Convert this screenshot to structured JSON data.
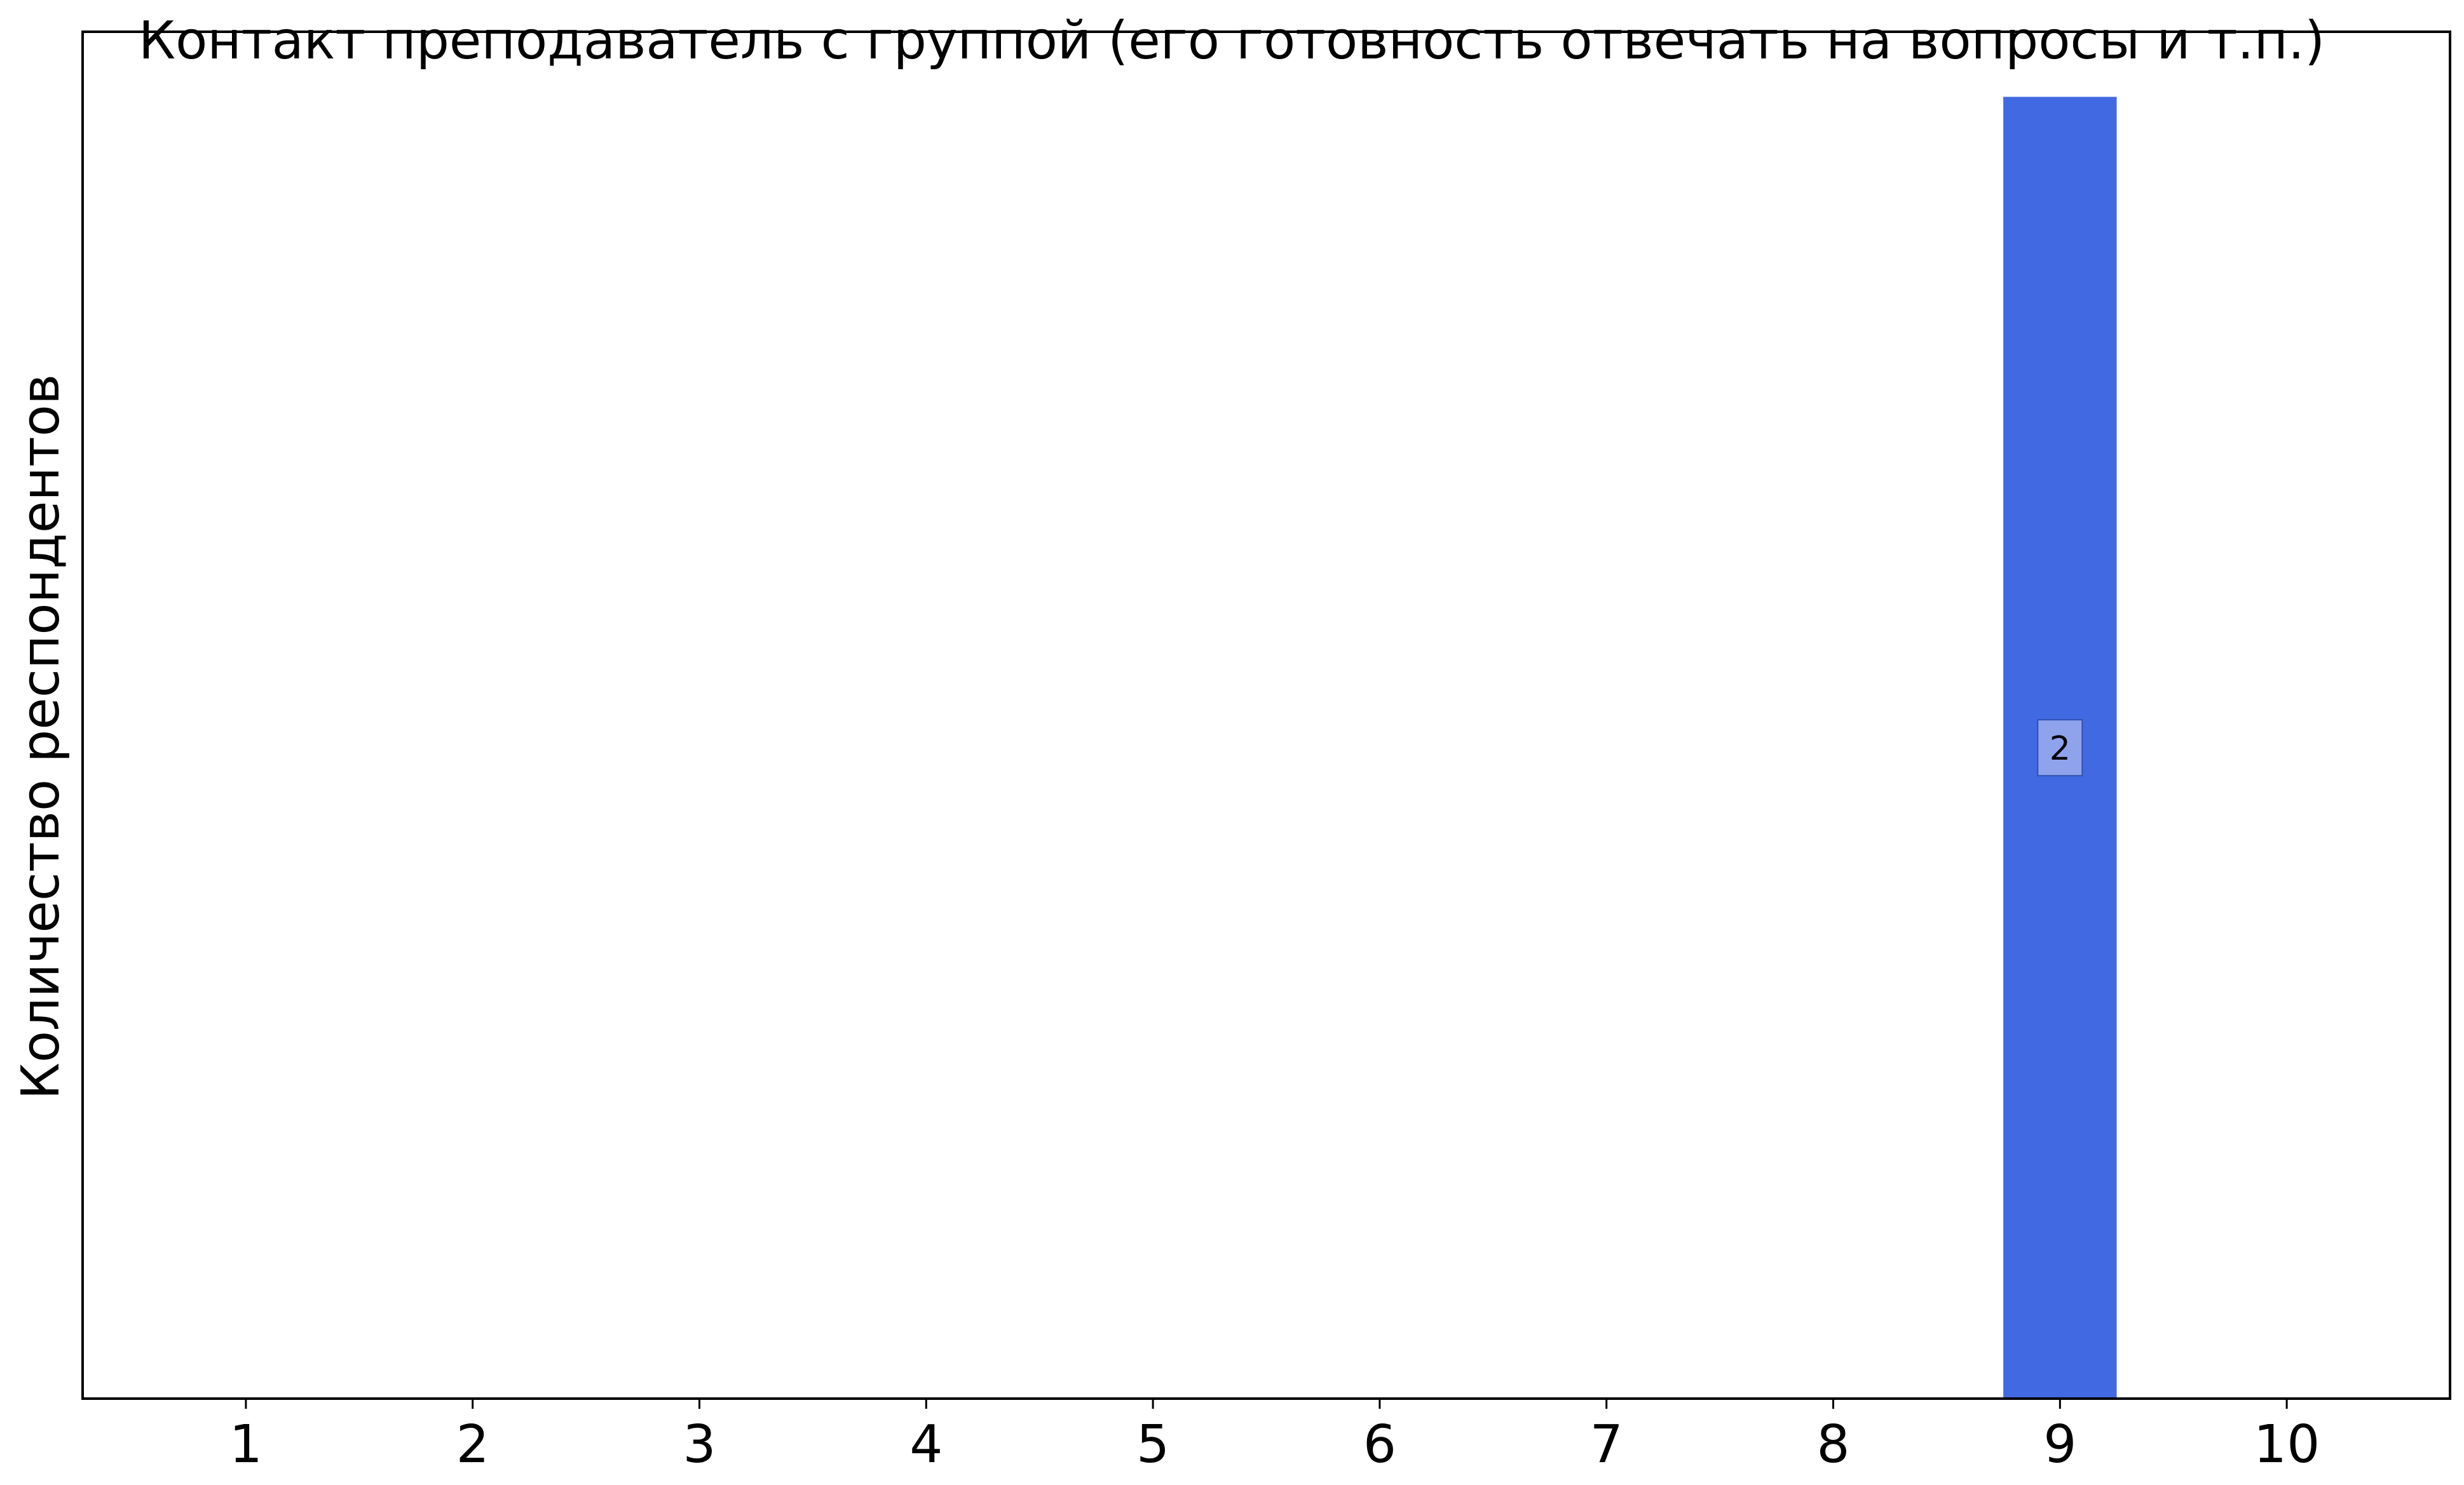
{
  "chart_data": {
    "type": "bar",
    "title": "Контакт преподаватель с группой (его готовность отвечать на вопросы и т.п.)",
    "xlabel": "",
    "ylabel": "Количество респондентов",
    "categories": [
      "1",
      "2",
      "3",
      "4",
      "5",
      "6",
      "7",
      "8",
      "9",
      "10"
    ],
    "values": [
      0,
      0,
      0,
      0,
      0,
      0,
      0,
      0,
      2,
      0
    ],
    "data_labels": [
      "",
      "",
      "",
      "",
      "",
      "",
      "",
      "",
      "2",
      ""
    ],
    "ylim": [
      0,
      2.1
    ],
    "yticks_shown": false,
    "grid": false,
    "legend": "none",
    "colors": {
      "bar": "#4169e1",
      "label_box_fill": "#8ea3ec",
      "label_box_edge": "#3050b0",
      "axis": "#000000"
    }
  }
}
